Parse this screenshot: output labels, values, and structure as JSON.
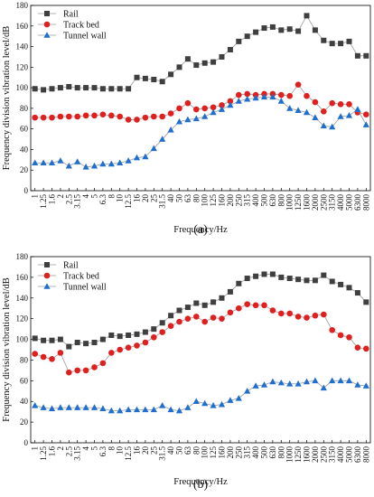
{
  "chart_data": [
    {
      "panel_label": "(a)",
      "type": "line",
      "xlabel": "Frequency/Hz",
      "ylabel": "Frequency division vibration level/dB",
      "ylim": [
        0,
        180
      ],
      "yticks": [
        0,
        20,
        40,
        60,
        80,
        100,
        120,
        140,
        160,
        180
      ],
      "categories": [
        "1",
        "1.25",
        "1.6",
        "2",
        "2.5",
        "3.15",
        "4",
        "5",
        "6.3",
        "8",
        "10",
        "12.5",
        "16",
        "20",
        "25",
        "31.5",
        "40",
        "50",
        "63",
        "80",
        "100",
        "125",
        "160",
        "200",
        "250",
        "315",
        "400",
        "500",
        "630",
        "800",
        "1000",
        "1250",
        "1600",
        "2000",
        "2500",
        "3150",
        "4000",
        "5000",
        "6300",
        "8000"
      ],
      "legend_position": "top-left",
      "grid": false,
      "series": [
        {
          "name": "Rail",
          "color": "#3f3f3f",
          "marker": "square",
          "values": [
            99,
            98,
            99,
            100,
            101,
            100,
            100,
            100,
            99,
            99,
            99,
            99,
            110,
            109,
            108,
            106,
            113,
            120,
            128,
            122,
            124,
            125,
            130,
            137,
            145,
            150,
            154,
            158,
            159,
            156,
            157,
            155,
            170,
            156,
            146,
            143,
            143,
            145,
            131,
            131
          ]
        },
        {
          "name": "Track bed",
          "color": "#e0201f",
          "marker": "circle",
          "values": [
            71,
            71,
            71,
            72,
            72,
            72,
            73,
            73,
            74,
            73,
            72,
            69,
            69,
            71,
            72,
            72,
            75,
            80,
            85,
            79,
            80,
            81,
            83,
            87,
            93,
            94,
            93,
            94,
            94,
            93,
            92,
            103,
            92,
            86,
            77,
            85,
            84,
            84,
            76,
            74
          ]
        },
        {
          "name": "Tunnel wall",
          "color": "#1f6fd0",
          "marker": "triangle",
          "values": [
            27,
            27,
            27,
            29,
            24,
            28,
            23,
            24,
            26,
            26,
            27,
            29,
            32,
            33,
            41,
            50,
            59,
            67,
            69,
            70,
            72,
            76,
            79,
            83,
            87,
            89,
            90,
            91,
            91,
            87,
            80,
            78,
            76,
            71,
            63,
            62,
            72,
            73,
            79,
            64
          ]
        }
      ]
    },
    {
      "panel_label": "(b)",
      "type": "line",
      "xlabel": "Frequency/Hz",
      "ylabel": "Frequency division vibration level/dB",
      "ylim": [
        0,
        180
      ],
      "yticks": [
        0,
        20,
        40,
        60,
        80,
        100,
        120,
        140,
        160,
        180
      ],
      "categories": [
        "1",
        "1.25",
        "1.6",
        "2",
        "2.5",
        "3.15",
        "4",
        "5",
        "6.3",
        "8",
        "10",
        "12.5",
        "16",
        "20",
        "25",
        "31.5",
        "40",
        "50",
        "63",
        "80",
        "100",
        "125",
        "160",
        "200",
        "250",
        "315",
        "400",
        "500",
        "630",
        "800",
        "1000",
        "1250",
        "1600",
        "2000",
        "2500",
        "3150",
        "4000",
        "5000",
        "6300",
        "8000"
      ],
      "legend_position": "top-left",
      "grid": false,
      "series": [
        {
          "name": "Rail",
          "color": "#3f3f3f",
          "marker": "square",
          "values": [
            101,
            99,
            99,
            100,
            93,
            97,
            96,
            97,
            100,
            104,
            103,
            104,
            105,
            107,
            110,
            116,
            123,
            128,
            131,
            135,
            133,
            136,
            140,
            146,
            154,
            159,
            161,
            163,
            163,
            160,
            159,
            158,
            157,
            157,
            162,
            156,
            153,
            150,
            145,
            136
          ]
        },
        {
          "name": "Track bed",
          "color": "#e0201f",
          "marker": "circle",
          "values": [
            86,
            83,
            81,
            87,
            68,
            70,
            70,
            73,
            77,
            87,
            90,
            92,
            94,
            97,
            102,
            107,
            113,
            117,
            120,
            122,
            117,
            121,
            120,
            126,
            130,
            134,
            133,
            133,
            128,
            125,
            125,
            122,
            121,
            123,
            124,
            109,
            104,
            102,
            92,
            91
          ]
        },
        {
          "name": "Tunnel wall",
          "color": "#1f6fd0",
          "marker": "triangle",
          "values": [
            36,
            34,
            33,
            34,
            34,
            34,
            34,
            34,
            33,
            31,
            31,
            32,
            32,
            32,
            32,
            36,
            32,
            31,
            34,
            40,
            38,
            36,
            37,
            41,
            43,
            50,
            55,
            56,
            59,
            58,
            57,
            57,
            59,
            60,
            53,
            60,
            60,
            60,
            56,
            55
          ]
        }
      ]
    }
  ]
}
